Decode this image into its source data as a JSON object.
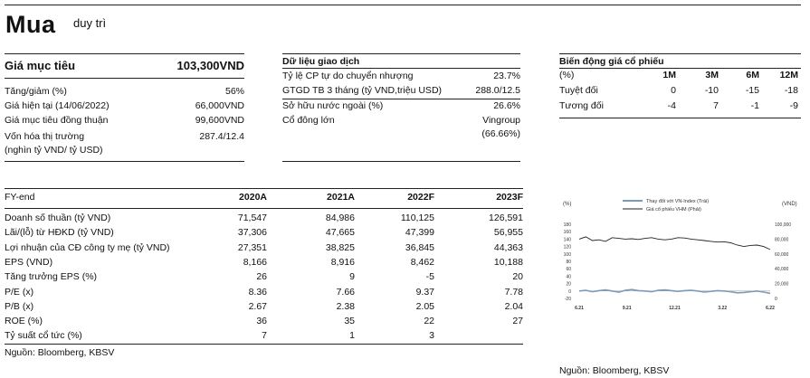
{
  "header": {
    "title": "Mua",
    "subtitle": "duy trì"
  },
  "target": {
    "label": "Giá mục tiêu",
    "value": "103,300VND",
    "rows": [
      {
        "label": "Tăng/giảm (%)",
        "value": "56%"
      },
      {
        "label": "Giá hiện tại (14/06/2022)",
        "value": "66,000VND"
      },
      {
        "label": "Giá mục tiêu đồng thuận",
        "value": "99,600VND"
      },
      {
        "label": "Vốn hóa thị trường",
        "value": "287.4/12.4"
      },
      {
        "label": "(nghìn tỷ VND/ tỷ USD)",
        "value": ""
      }
    ]
  },
  "trading": {
    "title": "Dữ liệu giao dịch",
    "rows": [
      {
        "label": "Tỷ lệ CP tự do chuyển nhượng",
        "value": "23.7%"
      },
      {
        "label": "GTGD TB 3 tháng (tỷ VND,triệu USD)",
        "value": "288.0/12.5"
      },
      {
        "label": "Sở hữu nước ngoài (%)",
        "value": "26.6%"
      },
      {
        "label": "Cổ đông lớn",
        "value": "Vingroup"
      },
      {
        "label": "",
        "value": "(66.66%)"
      }
    ]
  },
  "price_moves": {
    "title": "Biến động giá cổ phiếu",
    "header": [
      "(%)",
      "1M",
      "3M",
      "6M",
      "12M"
    ],
    "rows": [
      [
        "Tuyệt đối",
        "0",
        "-10",
        "-15",
        "-18"
      ],
      [
        "Tương đối",
        "-4",
        "7",
        "-1",
        "-9"
      ]
    ]
  },
  "fin": {
    "header": [
      "FY-end",
      "2020A",
      "2021A",
      "2022F",
      "2023F"
    ],
    "rows": [
      [
        "Doanh số thuần (tỷ VND)",
        "71,547",
        "84,986",
        "110,125",
        "126,591"
      ],
      [
        "Lãi/(lỗ) từ HĐKD (tỷ VND)",
        "37,306",
        "47,665",
        "47,399",
        "56,955"
      ],
      [
        "Lợi nhuận của CĐ công ty mẹ  (tỷ VND)",
        "27,351",
        "38,825",
        "36,845",
        "44,363"
      ],
      [
        "EPS (VND)",
        "8,166",
        "8,916",
        "8,462",
        "10,188"
      ],
      [
        "Tăng trưởng EPS (%)",
        "26",
        "9",
        "-5",
        "20"
      ],
      [
        "P/E (x)",
        "8.36",
        "7.66",
        "9.37",
        "7.78"
      ],
      [
        "P/B (x)",
        "2.67",
        "2.38",
        "2.05",
        "2.04"
      ],
      [
        "ROE (%)",
        "36",
        "35",
        "22",
        "27"
      ],
      [
        "Tỷ suất cổ tức (%)",
        "7",
        "1",
        "3",
        ""
      ]
    ],
    "source": "Nguồn: Bloomberg, KBSV"
  },
  "chart_data": {
    "type": "line",
    "ylabel_left": "(%)",
    "ylabel_right": "(VND)",
    "legend": [
      "Thay đổi với VN-Index (Trái)",
      "Giá cổ phiếu VHM (Phải)"
    ],
    "left_ticks": [
      "180",
      "160",
      "140",
      "120",
      "100",
      "80",
      "60",
      "40",
      "20",
      "0",
      "-20"
    ],
    "right_ticks": [
      "100,000",
      "80,000",
      "60,000",
      "40,000",
      "20,000",
      "0"
    ],
    "x_ticks": [
      "6.21",
      "9.21",
      "12.21",
      "3.22",
      "6.22"
    ],
    "ylim_left": [
      -20,
      180
    ],
    "ylim_right": [
      0,
      100000
    ],
    "series": [
      {
        "name": "Thay đổi với VN-Index (Trái)",
        "color": "#7b9ab8",
        "values": [
          0,
          2,
          -2,
          1,
          3,
          0,
          -3,
          2,
          4,
          1,
          0,
          -2,
          2,
          3,
          1,
          -1,
          1,
          2,
          0,
          -3,
          -1,
          1,
          0,
          -2,
          -5,
          -4,
          -2,
          0,
          -3,
          -6
        ]
      },
      {
        "name": "Giá cổ phiếu VHM (Phải)",
        "color": "#222222",
        "values": [
          80000,
          83000,
          78000,
          79000,
          77000,
          82000,
          81000,
          80000,
          80500,
          79500,
          81000,
          82000,
          80000,
          79000,
          80000,
          82000,
          81500,
          80000,
          79000,
          78000,
          77000,
          76000,
          76500,
          75000,
          72000,
          70000,
          71500,
          72000,
          70000,
          66000
        ]
      }
    ],
    "source": "Nguồn: Bloomberg, KBSV"
  }
}
